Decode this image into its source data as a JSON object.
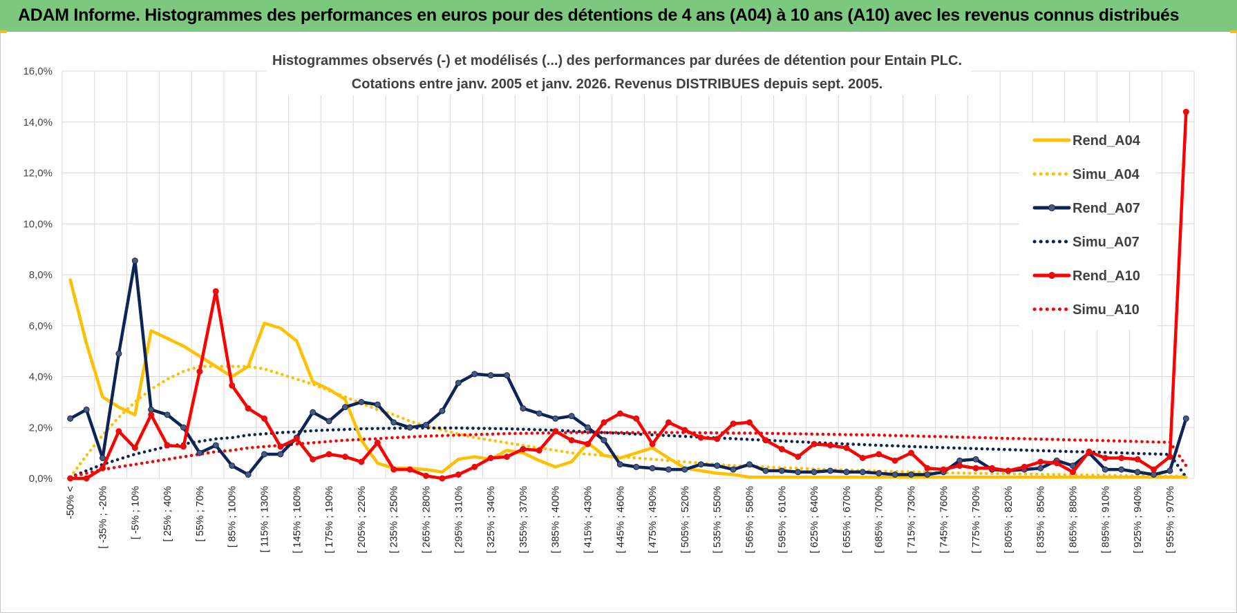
{
  "banner": {
    "title": "ADAM Informe. Histogrammes des performances en euros pour des détentions de 4 ans (A04) à 10 ans (A10) avec les revenus connus distribués"
  },
  "chart_data": {
    "type": "line",
    "title": "Histogrammes observés (-) et modélisés (...) des performances par durées de détention pour Entain PLC.",
    "subtitle": "Cotations entre janv. 2005 et janv. 2026. Revenus DISTRIBUES depuis sept. 2005.",
    "xlabel": "",
    "ylabel": "",
    "ylim": [
      0,
      16
    ],
    "yticks": [
      "0,0%",
      "2,0%",
      "4,0%",
      "6,0%",
      "8,0%",
      "10,0%",
      "12,0%",
      "14,0%",
      "16,0%"
    ],
    "grid": true,
    "legend_position": "right",
    "x_labels_shown": [
      "-50% <",
      "[ -35% ; -20%",
      "[ -5% ; 10%",
      "[ 25% ; 40%",
      "[ 55% ; 70%",
      "[ 85% ; 100%",
      "[ 115% ; 130%",
      "[ 145% ; 160%",
      "[ 175% ; 190%",
      "[ 205% ; 220%",
      "[ 235% ; 250%",
      "[ 265% ; 280%",
      "[ 295% ; 310%",
      "[ 325% ; 340%",
      "[ 355% ; 370%",
      "[ 385% ; 400%",
      "[ 415% ; 430%",
      "[ 445% ; 460%",
      "[ 475% ; 490%",
      "[ 505% ; 520%",
      "[ 535% ; 550%",
      "[ 565% ; 580%",
      "[ 595% ; 610%",
      "[ 625% ; 640%",
      "[ 655% ; 670%",
      "[ 685% ; 700%",
      "[ 715% ; 730%",
      "[ 745% ; 760%",
      "[ 775% ; 790%",
      "[ 805% ; 820%",
      "[ 835% ; 850%",
      "[ 865% ; 880%",
      "[ 895% ; 910%",
      "[ 925% ; 940%",
      "[ 955% ; 970%"
    ],
    "n_points": 70,
    "series": [
      {
        "name": "Rend_A04",
        "color": "#ffc000",
        "style": "solid",
        "markers": false,
        "values": [
          7.8,
          5.3,
          3.2,
          2.8,
          2.5,
          5.8,
          5.5,
          5.2,
          4.8,
          4.4,
          4.0,
          4.4,
          6.1,
          5.9,
          5.4,
          3.8,
          3.5,
          3.1,
          1.5,
          0.6,
          0.4,
          0.4,
          0.35,
          0.25,
          0.75,
          0.85,
          0.75,
          1.1,
          1.0,
          0.7,
          0.45,
          0.65,
          1.4,
          0.9,
          0.8,
          1.0,
          1.2,
          0.8,
          0.4,
          0.3,
          0.2,
          0.15,
          0.05,
          0.05,
          0.05,
          0.05,
          0.05,
          0.05,
          0.05,
          0.05,
          0.05,
          0.05,
          0.05,
          0.05,
          0.05,
          0.05,
          0.05,
          0.05,
          0.05,
          0.05,
          0.05,
          0.05,
          0.05,
          0.05,
          0.05,
          0.05,
          0.05,
          0.05,
          0.05,
          0.05
        ]
      },
      {
        "name": "Simu_A04",
        "color": "#ffc000",
        "style": "dotted",
        "markers": false,
        "values": [
          0.05,
          0.9,
          1.7,
          2.4,
          3.0,
          3.5,
          3.9,
          4.2,
          4.4,
          4.4,
          4.4,
          4.4,
          4.3,
          4.1,
          3.9,
          3.7,
          3.45,
          3.2,
          2.95,
          2.7,
          2.5,
          2.25,
          2.05,
          1.9,
          1.75,
          1.6,
          1.5,
          1.4,
          1.3,
          1.2,
          1.1,
          1.0,
          0.95,
          0.9,
          0.85,
          0.8,
          0.75,
          0.7,
          0.65,
          0.6,
          0.55,
          0.5,
          0.48,
          0.45,
          0.42,
          0.4,
          0.37,
          0.35,
          0.33,
          0.31,
          0.29,
          0.27,
          0.25,
          0.24,
          0.22,
          0.21,
          0.2,
          0.19,
          0.18,
          0.17,
          0.16,
          0.15,
          0.14,
          0.13,
          0.12,
          0.11,
          0.1,
          0.1,
          0.09,
          0.09
        ]
      },
      {
        "name": "Rend_A07",
        "color": "#0d2457",
        "style": "solid",
        "markers": true,
        "values": [
          2.35,
          2.7,
          0.8,
          4.9,
          8.55,
          2.7,
          2.5,
          2.0,
          1.0,
          1.3,
          0.5,
          0.15,
          0.95,
          0.95,
          1.6,
          2.6,
          2.25,
          2.8,
          3.0,
          2.9,
          2.2,
          2.0,
          2.1,
          2.65,
          3.75,
          4.1,
          4.05,
          4.05,
          2.75,
          2.55,
          2.35,
          2.45,
          2.0,
          1.5,
          0.55,
          0.45,
          0.4,
          0.35,
          0.35,
          0.55,
          0.5,
          0.35,
          0.55,
          0.3,
          0.3,
          0.25,
          0.25,
          0.3,
          0.25,
          0.25,
          0.2,
          0.15,
          0.15,
          0.15,
          0.25,
          0.7,
          0.75,
          0.35,
          0.3,
          0.35,
          0.4,
          0.7,
          0.5,
          1.0,
          0.35,
          0.35,
          0.25,
          0.15,
          0.3,
          2.35
        ]
      },
      {
        "name": "Simu_A07",
        "color": "#0d2457",
        "style": "dotted",
        "markers": false,
        "values": [
          0.05,
          0.3,
          0.55,
          0.75,
          0.95,
          1.1,
          1.25,
          1.35,
          1.45,
          1.55,
          1.6,
          1.7,
          1.75,
          1.8,
          1.83,
          1.87,
          1.9,
          1.92,
          1.95,
          1.96,
          1.97,
          1.98,
          1.98,
          1.98,
          1.98,
          1.97,
          1.96,
          1.95,
          1.93,
          1.91,
          1.89,
          1.86,
          1.83,
          1.8,
          1.77,
          1.74,
          1.71,
          1.68,
          1.65,
          1.62,
          1.59,
          1.56,
          1.53,
          1.5,
          1.47,
          1.44,
          1.41,
          1.38,
          1.35,
          1.33,
          1.3,
          1.28,
          1.25,
          1.23,
          1.21,
          1.19,
          1.17,
          1.15,
          1.13,
          1.11,
          1.09,
          1.07,
          1.05,
          1.04,
          1.02,
          1.0,
          0.98,
          0.96,
          0.94,
          0.05
        ]
      },
      {
        "name": "Rend_A10",
        "color": "#ff0000",
        "style": "solid",
        "markers": true,
        "values": [
          0.0,
          0.0,
          0.4,
          1.85,
          1.2,
          2.5,
          1.3,
          1.25,
          4.2,
          7.35,
          3.65,
          2.75,
          2.35,
          1.25,
          1.55,
          0.75,
          0.95,
          0.85,
          0.65,
          1.4,
          0.35,
          0.35,
          0.1,
          0.0,
          0.15,
          0.45,
          0.8,
          0.85,
          1.15,
          1.1,
          1.85,
          1.5,
          1.35,
          2.2,
          2.55,
          2.35,
          1.35,
          2.2,
          1.9,
          1.6,
          1.55,
          2.15,
          2.2,
          1.5,
          1.15,
          0.85,
          1.35,
          1.3,
          1.2,
          0.8,
          0.95,
          0.7,
          1.0,
          0.4,
          0.35,
          0.5,
          0.4,
          0.4,
          0.3,
          0.45,
          0.65,
          0.6,
          0.25,
          1.05,
          0.8,
          0.8,
          0.75,
          0.35,
          0.85,
          14.4
        ]
      },
      {
        "name": "Simu_A10",
        "color": "#ff0000",
        "style": "dotted",
        "markers": false,
        "values": [
          0.05,
          0.2,
          0.35,
          0.45,
          0.55,
          0.65,
          0.75,
          0.85,
          0.95,
          1.05,
          1.1,
          1.2,
          1.25,
          1.3,
          1.35,
          1.4,
          1.45,
          1.5,
          1.53,
          1.56,
          1.6,
          1.63,
          1.66,
          1.68,
          1.7,
          1.72,
          1.74,
          1.76,
          1.77,
          1.78,
          1.79,
          1.8,
          1.8,
          1.8,
          1.8,
          1.8,
          1.8,
          1.8,
          1.8,
          1.79,
          1.79,
          1.78,
          1.78,
          1.77,
          1.76,
          1.75,
          1.74,
          1.73,
          1.72,
          1.71,
          1.7,
          1.68,
          1.67,
          1.65,
          1.64,
          1.62,
          1.61,
          1.59,
          1.57,
          1.56,
          1.54,
          1.53,
          1.51,
          1.5,
          1.48,
          1.47,
          1.45,
          1.43,
          1.42,
          0.5
        ]
      }
    ]
  }
}
